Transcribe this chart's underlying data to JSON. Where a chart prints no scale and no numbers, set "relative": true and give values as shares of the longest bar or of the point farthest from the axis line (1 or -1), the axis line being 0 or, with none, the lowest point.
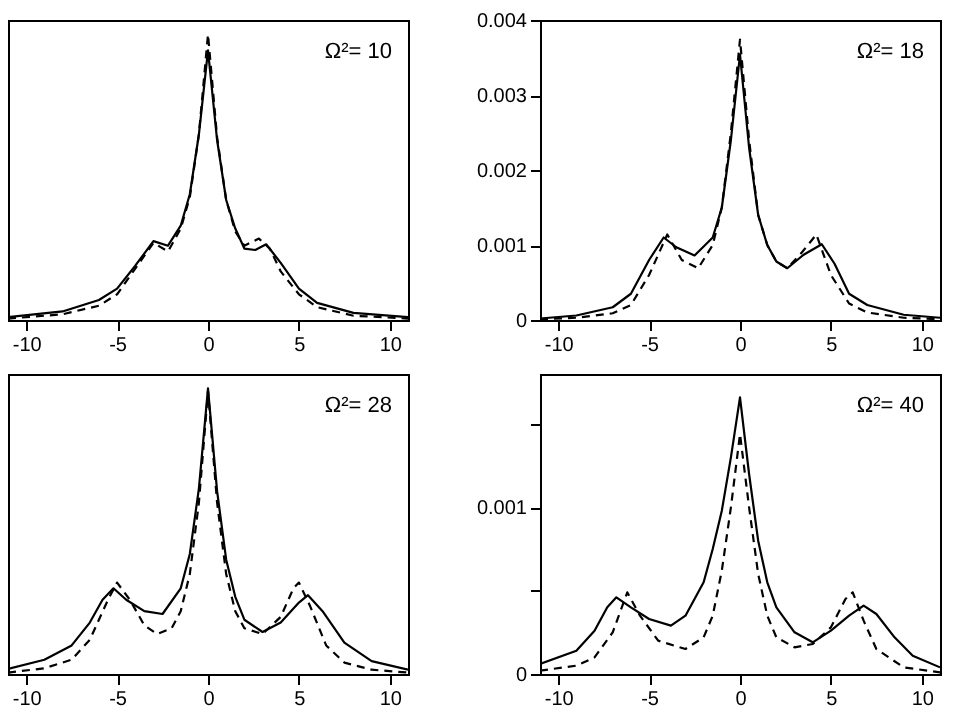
{
  "chart_data": [
    {
      "type": "line",
      "relative": true,
      "tick_labels": "x",
      "xlim": [
        -11,
        11
      ],
      "xticks": [
        -10,
        -5,
        0,
        5,
        10
      ],
      "annotations": [
        "Ω²= 10"
      ],
      "series": [
        {
          "color": "#000000",
          "line_style": "solid",
          "x": [
            -11,
            -8,
            -6,
            -5,
            -4,
            -3,
            -2.2,
            -1.5,
            -1,
            -0.5,
            0,
            0.5,
            1,
            1.5,
            2,
            2.6,
            3.2,
            4,
            5,
            6,
            8,
            11
          ],
          "values": [
            0.01,
            0.03,
            0.07,
            0.11,
            0.19,
            0.276,
            0.26,
            0.33,
            0.44,
            0.65,
            0.944,
            0.63,
            0.42,
            0.32,
            0.25,
            0.245,
            0.265,
            0.2,
            0.11,
            0.06,
            0.025,
            0.01
          ]
        },
        {
          "color": "#000000",
          "line_style": "dashed",
          "x": [
            -11,
            -8,
            -6,
            -5,
            -4,
            -3,
            -2.2,
            -1.5,
            -1,
            -0.5,
            0,
            0.5,
            1,
            1.5,
            2,
            2.8,
            3.4,
            4,
            5,
            6,
            8,
            11
          ],
          "values": [
            0.005,
            0.02,
            0.05,
            0.09,
            0.18,
            0.27,
            0.24,
            0.32,
            0.43,
            0.65,
            1.0,
            0.64,
            0.42,
            0.31,
            0.26,
            0.285,
            0.25,
            0.17,
            0.09,
            0.045,
            0.015,
            0.005
          ]
        }
      ]
    },
    {
      "type": "line",
      "xlim": [
        -11,
        11
      ],
      "xticks": [
        -10,
        -5,
        0,
        5,
        10
      ],
      "ylim": [
        0,
        0.004
      ],
      "yticks": [
        0,
        0.001,
        0.002,
        0.003,
        0.004
      ],
      "annotations": [
        "Ω²= 18"
      ],
      "series": [
        {
          "color": "#000000",
          "line_style": "solid",
          "x": [
            -11,
            -9,
            -7,
            -6,
            -5,
            -4.2,
            -3.5,
            -2.5,
            -1.5,
            -1,
            -0.5,
            0,
            0.5,
            1,
            1.5,
            2,
            2.6,
            3.5,
            4.5,
            5.2,
            6,
            7,
            9,
            11
          ],
          "values": [
            2e-05,
            6e-05,
            0.00017,
            0.00035,
            0.0008,
            0.0011,
            0.00097,
            0.00086,
            0.0011,
            0.0015,
            0.0024,
            0.00354,
            0.0023,
            0.0014,
            0.001,
            0.00078,
            0.00069,
            0.00087,
            0.00101,
            0.00075,
            0.00035,
            0.0002,
            7e-05,
            3e-05
          ]
        },
        {
          "color": "#000000",
          "line_style": "dashed",
          "x": [
            -11,
            -9,
            -7,
            -6,
            -5,
            -4,
            -3.2,
            -2.3,
            -1.5,
            -1,
            -0.5,
            0,
            0.5,
            1,
            1.5,
            2,
            2.6,
            3.4,
            4.2,
            5,
            6,
            7,
            9,
            11
          ],
          "values": [
            1e-05,
            3e-05,
            9e-05,
            0.0002,
            0.0006,
            0.00114,
            0.0008,
            0.00069,
            0.001,
            0.0015,
            0.0025,
            0.00374,
            0.0024,
            0.0014,
            0.001,
            0.00078,
            0.00069,
            0.0009,
            0.00114,
            0.0006,
            0.00022,
            0.0001,
            3e-05,
            1e-05
          ]
        }
      ]
    },
    {
      "type": "line",
      "relative": true,
      "tick_labels": "x",
      "xlim": [
        -11,
        11
      ],
      "xticks": [
        -10,
        -5,
        0,
        5,
        10
      ],
      "annotations": [
        "Ω²= 28"
      ],
      "series": [
        {
          "color": "#000000",
          "line_style": "solid",
          "x": [
            -11,
            -9,
            -7.5,
            -6.5,
            -5.8,
            -5.2,
            -4.5,
            -3.5,
            -2.5,
            -1.5,
            -1,
            -0.5,
            0,
            0.5,
            1,
            1.5,
            2,
            3,
            4,
            5,
            5.5,
            6.3,
            7.5,
            9,
            11
          ],
          "values": [
            0.018,
            0.05,
            0.1,
            0.18,
            0.26,
            0.3,
            0.26,
            0.22,
            0.21,
            0.3,
            0.42,
            0.65,
            1.0,
            0.64,
            0.4,
            0.27,
            0.19,
            0.147,
            0.18,
            0.25,
            0.276,
            0.22,
            0.11,
            0.045,
            0.015
          ]
        },
        {
          "color": "#000000",
          "line_style": "dashed",
          "x": [
            -11,
            -9,
            -7.5,
            -6.5,
            -5.5,
            -5,
            -4.3,
            -3.5,
            -2.8,
            -2,
            -1.5,
            -1,
            -0.5,
            0,
            0.5,
            1,
            1.5,
            2,
            3,
            4,
            4.7,
            5,
            5.6,
            6.5,
            7.5,
            9,
            11
          ],
          "values": [
            0.005,
            0.02,
            0.05,
            0.12,
            0.26,
            0.32,
            0.26,
            0.17,
            0.14,
            0.16,
            0.22,
            0.35,
            0.6,
            0.99,
            0.6,
            0.35,
            0.22,
            0.16,
            0.14,
            0.2,
            0.3,
            0.32,
            0.24,
            0.1,
            0.04,
            0.015,
            0.005
          ]
        }
      ]
    },
    {
      "type": "line",
      "xlim": [
        -11,
        11
      ],
      "xticks": [
        -10,
        -5,
        0,
        5,
        10
      ],
      "ylim": [
        0,
        0.0018
      ],
      "yticks": [
        0,
        {
          "value": 0.0005,
          "label": null
        },
        0.001,
        {
          "value": 0.0015,
          "label": null
        }
      ],
      "annotations": [
        "Ω²= 40"
      ],
      "series": [
        {
          "color": "#000000",
          "line_style": "solid",
          "x": [
            -11,
            -9,
            -8,
            -7.3,
            -6.8,
            -6,
            -5,
            -3.8,
            -3,
            -2,
            -1.5,
            -1,
            -0.5,
            0,
            0.5,
            1,
            1.5,
            2,
            3,
            4,
            5,
            6,
            6.8,
            7.5,
            8.5,
            9.5,
            11
          ],
          "values": [
            6e-05,
            0.00014,
            0.00026,
            0.0004,
            0.00046,
            0.0004,
            0.00033,
            0.00029,
            0.00035,
            0.00055,
            0.00075,
            0.00098,
            0.0013,
            0.00166,
            0.0012,
            0.0008,
            0.00055,
            0.0004,
            0.00025,
            0.00019,
            0.00026,
            0.00035,
            0.00041,
            0.00036,
            0.00022,
            0.00011,
            4e-05
          ]
        },
        {
          "color": "#000000",
          "line_style": "dashed",
          "x": [
            -11,
            -9,
            -8,
            -7,
            -6.2,
            -5.5,
            -4.5,
            -3,
            -2,
            -1.5,
            -1,
            -0.5,
            0,
            0.5,
            1,
            1.5,
            2,
            3,
            4,
            5,
            5.8,
            6.2,
            6.8,
            7.5,
            9,
            11
          ],
          "values": [
            2e-05,
            5e-05,
            0.0001,
            0.00025,
            0.00049,
            0.00035,
            0.0002,
            0.00015,
            0.00022,
            0.00035,
            0.00062,
            0.001,
            0.00144,
            0.001,
            0.0006,
            0.00035,
            0.00022,
            0.00016,
            0.00018,
            0.00028,
            0.00045,
            0.00049,
            0.00032,
            0.00015,
            4e-05,
            1e-05
          ]
        }
      ]
    }
  ]
}
